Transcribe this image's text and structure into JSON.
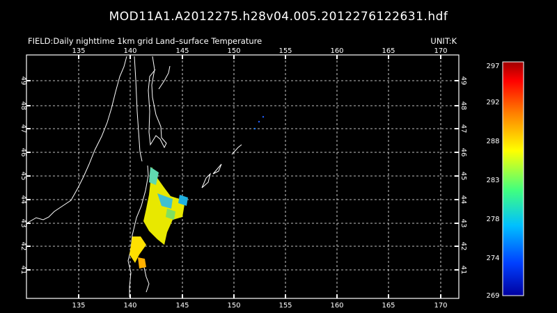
{
  "title": "MOD11A1.A2012275.h28v04.005.2012276122631.hdf",
  "field_label": "FIELD:Daily nighttime 1km grid Land–surface Temperature",
  "unit_label": "UNIT:K",
  "map": {
    "lon_ticks": [
      "135",
      "140",
      "145",
      "150",
      "155",
      "160",
      "165",
      "170"
    ],
    "lat_ticks": [
      "49",
      "48",
      "47",
      "46",
      "45",
      "44",
      "43",
      "42",
      "41"
    ],
    "lon_range": [
      130.2,
      171.9
    ],
    "lat_range": [
      40.0,
      50.1
    ],
    "grid": true
  },
  "colorbar": {
    "labels": [
      "297",
      "292",
      "288",
      "283",
      "278",
      "274",
      "269"
    ],
    "range": [
      269,
      297
    ],
    "colors": [
      "#0000a0",
      "#0040ff",
      "#00c0ff",
      "#40ff80",
      "#ffff00",
      "#ff8000",
      "#ff0000",
      "#a00000"
    ]
  },
  "colors": {
    "background": "#000000",
    "foreground": "#ffffff"
  }
}
